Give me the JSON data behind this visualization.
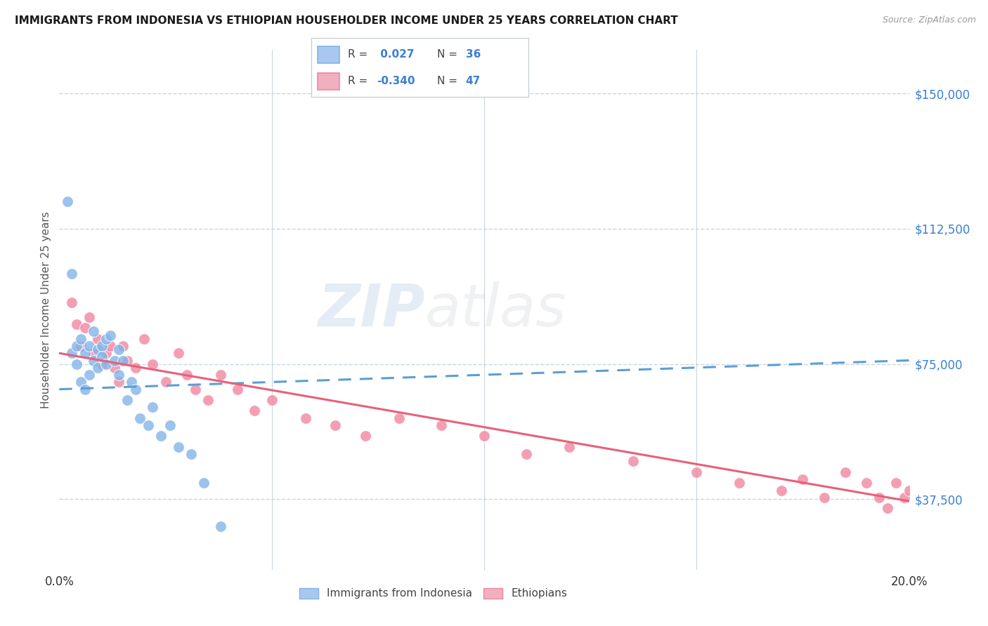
{
  "title": "IMMIGRANTS FROM INDONESIA VS ETHIOPIAN HOUSEHOLDER INCOME UNDER 25 YEARS CORRELATION CHART",
  "source": "Source: ZipAtlas.com",
  "ylabel": "Householder Income Under 25 years",
  "xmin": 0.0,
  "xmax": 0.2,
  "ymin": 18000,
  "ymax": 162000,
  "yticks": [
    37500,
    75000,
    112500,
    150000
  ],
  "ytick_labels": [
    "$37,500",
    "$75,000",
    "$112,500",
    "$150,000"
  ],
  "xticks": [
    0.0,
    0.05,
    0.1,
    0.15,
    0.2
  ],
  "xtick_labels": [
    "0.0%",
    "",
    "",
    "",
    "20.0%"
  ],
  "watermark_zip": "ZIP",
  "watermark_atlas": "atlas",
  "indonesia_color": "#82b4e8",
  "ethiopian_color": "#f087a0",
  "indonesia_line_color": "#5a9fd4",
  "ethiopian_line_color": "#e8607a",
  "background_color": "#ffffff",
  "grid_color": "#c8d4e4",
  "legend_box_color": "#ffffff",
  "legend_border_color": "#d0d0d0",
  "R_indo": 0.027,
  "N_indo": 36,
  "R_eth": -0.34,
  "N_eth": 47,
  "indo_scatter_x": [
    0.002,
    0.003,
    0.003,
    0.004,
    0.004,
    0.005,
    0.005,
    0.006,
    0.006,
    0.007,
    0.007,
    0.008,
    0.008,
    0.009,
    0.009,
    0.01,
    0.01,
    0.011,
    0.011,
    0.012,
    0.013,
    0.014,
    0.014,
    0.015,
    0.016,
    0.017,
    0.018,
    0.019,
    0.021,
    0.022,
    0.024,
    0.026,
    0.028,
    0.031,
    0.034,
    0.038
  ],
  "indo_scatter_y": [
    120000,
    100000,
    78000,
    80000,
    75000,
    82000,
    70000,
    78000,
    68000,
    80000,
    72000,
    84000,
    76000,
    79000,
    74000,
    80000,
    77000,
    82000,
    75000,
    83000,
    76000,
    79000,
    72000,
    76000,
    65000,
    70000,
    68000,
    60000,
    58000,
    63000,
    55000,
    58000,
    52000,
    50000,
    42000,
    30000
  ],
  "eth_scatter_x": [
    0.003,
    0.004,
    0.005,
    0.006,
    0.007,
    0.008,
    0.009,
    0.01,
    0.011,
    0.012,
    0.013,
    0.014,
    0.015,
    0.016,
    0.018,
    0.02,
    0.022,
    0.025,
    0.028,
    0.03,
    0.032,
    0.035,
    0.038,
    0.042,
    0.046,
    0.05,
    0.058,
    0.065,
    0.072,
    0.08,
    0.09,
    0.1,
    0.11,
    0.12,
    0.135,
    0.15,
    0.16,
    0.17,
    0.18,
    0.185,
    0.19,
    0.193,
    0.195,
    0.197,
    0.199,
    0.2,
    0.175
  ],
  "eth_scatter_y": [
    92000,
    86000,
    80000,
    85000,
    88000,
    78000,
    82000,
    75000,
    78000,
    80000,
    74000,
    70000,
    80000,
    76000,
    74000,
    82000,
    75000,
    70000,
    78000,
    72000,
    68000,
    65000,
    72000,
    68000,
    62000,
    65000,
    60000,
    58000,
    55000,
    60000,
    58000,
    55000,
    50000,
    52000,
    48000,
    45000,
    42000,
    40000,
    38000,
    45000,
    42000,
    38000,
    35000,
    42000,
    38000,
    40000,
    43000
  ],
  "indo_trend_x0": 0.0,
  "indo_trend_x1": 0.2,
  "indo_trend_y0": 68000,
  "indo_trend_y1": 76000,
  "eth_trend_x0": 0.0,
  "eth_trend_x1": 0.2,
  "eth_trend_y0": 78000,
  "eth_trend_y1": 37000
}
